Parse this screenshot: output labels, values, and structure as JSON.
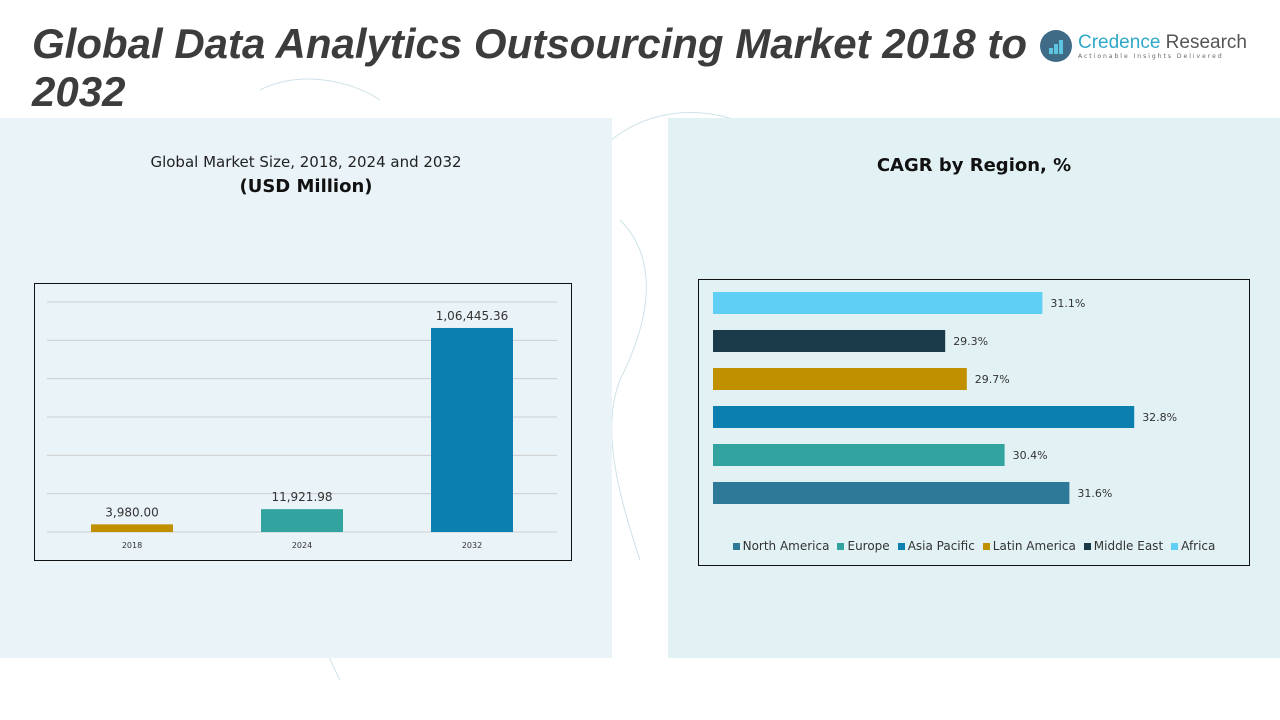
{
  "header": {
    "title": "Global Data Analytics Outsourcing Market 2018 to 2032",
    "logo_name_part1": "Credence",
    "logo_name_part2": " Research",
    "logo_tagline": "Actionable Insights Delivered"
  },
  "left_panel": {
    "subtitle": "Global Market Size, 2018, 2024 and 2032",
    "unit": "(USD Million)"
  },
  "right_panel": {
    "title": "CAGR by Region, %"
  },
  "chart_data": [
    {
      "type": "bar",
      "title": "Global Market Size, 2018, 2024 and 2032",
      "ylabel": "USD Million",
      "xlabel": "",
      "categories": [
        "2018",
        "2024",
        "2032"
      ],
      "values": [
        3980.0,
        11921.98,
        106445.36
      ],
      "value_labels": [
        "3,980.00",
        "11,921.98",
        "1,06,445.36"
      ],
      "colors": [
        "#c09000",
        "#33a3a0",
        "#0a7fb0"
      ],
      "ylim": [
        0,
        120000
      ],
      "grid": true
    },
    {
      "type": "bar",
      "orientation": "horizontal",
      "title": "CAGR by Region, %",
      "categories": [
        "North America",
        "Europe",
        "Asia Pacific",
        "Latin America",
        "Middle East",
        "Africa"
      ],
      "values": [
        31.6,
        30.4,
        32.8,
        29.7,
        29.3,
        31.1
      ],
      "value_labels": [
        "31.6%",
        "30.4%",
        "32.8%",
        "29.7%",
        "29.3%",
        "31.1%"
      ],
      "colors": [
        "#2e7898",
        "#33a3a0",
        "#0a7fb0",
        "#c09000",
        "#1a3a4a",
        "#5fcff5"
      ],
      "xlim": [
        25,
        34
      ],
      "legend": "bottom",
      "grid": false
    }
  ]
}
